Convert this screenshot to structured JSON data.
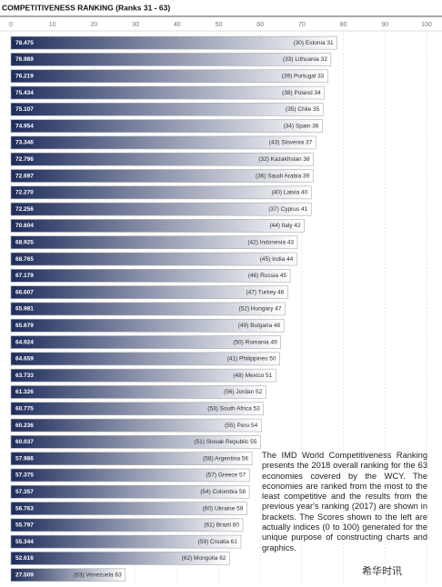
{
  "chart_data": {
    "type": "hbar",
    "title": "COMPETITIVENESS RANKING (Ranks 31 - 63)",
    "categories": [
      "(30) Estonia 31",
      "(33) Lithuania 32",
      "(39) Portugal 33",
      "(38) Poland 34",
      "(35) Chile 35",
      "(34) Spain 36",
      "(43) Slovenia 37",
      "(32) Kazakhstan 38",
      "(36) Saudi Arabia 39",
      "(40) Latvia 40",
      "(37) Cyprus 41",
      "(44) Italy 42",
      "(42) Indonesia 43",
      "(45) India 44",
      "(46) Russia 45",
      "(47) Turkey 46",
      "(52) Hungary 47",
      "(49) Bulgaria 48",
      "(50) Romania 49",
      "(41) Philippines 50",
      "(48) Mexico 51",
      "(56) Jordan 52",
      "(53) South Africa 53",
      "(55) Peru 54",
      "(51) Slovak Republic 55",
      "(58) Argentina 56",
      "(57) Greece 57",
      "(54) Colombia 58",
      "(60) Ukraine 59",
      "(61) Brazil 60",
      "(59) Croatia 61",
      "(62) Mongolia 62",
      "(63) Venezuela 63"
    ],
    "values": [
      78.475,
      76.989,
      76.219,
      75.434,
      75.107,
      74.954,
      73.346,
      72.796,
      72.697,
      72.27,
      72.256,
      70.604,
      68.925,
      68.765,
      67.179,
      66.607,
      65.981,
      65.679,
      64.924,
      64.659,
      63.733,
      61.326,
      60.775,
      60.236,
      60.037,
      57.986,
      57.375,
      57.357,
      56.763,
      55.797,
      55.344,
      52.616,
      27.509
    ],
    "value_labels": [
      "78.475",
      "76.989",
      "76.219",
      "75.434",
      "75.107",
      "74.954",
      "73.346",
      "72.796",
      "72.697",
      "72.270",
      "72.256",
      "70.604",
      "68.925",
      "68.765",
      "67.179",
      "66.607",
      "65.981",
      "65.679",
      "64.924",
      "64.659",
      "63.733",
      "61.326",
      "60.775",
      "60.236",
      "60.037",
      "57.986",
      "57.375",
      "57.357",
      "56.763",
      "55.797",
      "55.344",
      "52.616",
      "27.509"
    ],
    "color": "#1f2d5c",
    "xlim": [
      0,
      100
    ],
    "xticks": [
      0,
      10,
      20,
      30,
      40,
      50,
      60,
      70,
      80,
      90,
      100
    ],
    "grid": true,
    "annotation": "The IMD World Competitiveness Ranking presents the 2018 overall ranking for the 63 economies covered by the WCY. The economies are ranked from the most to the least competitive and the results from the previous year's ranking (2017) are shown in brackets. The Scores shown to the left are actually indices (0 to 100) generated for the unique purpose of constructing charts and graphics.",
    "watermark": "希华时讯"
  }
}
